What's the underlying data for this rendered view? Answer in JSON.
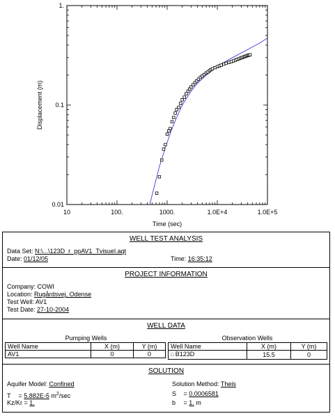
{
  "chart_data": {
    "type": "scatter",
    "x_scale": "log",
    "y_scale": "log",
    "xlim": [
      10,
      100000
    ],
    "ylim": [
      0.01,
      1
    ],
    "xlabel": "Time (sec)",
    "ylabel": "Displacement (m)",
    "x_tick_labels": [
      "10",
      "100.",
      "1000.",
      "1.0E+4",
      "1.0E+5"
    ],
    "y_tick_labels": [
      "0.01",
      "0.1",
      "1."
    ],
    "series": [
      {
        "kind": "points",
        "marker": "square",
        "color": "#000000",
        "points": [
          [
            620,
            0.013
          ],
          [
            700,
            0.019
          ],
          [
            780,
            0.028
          ],
          [
            850,
            0.036
          ],
          [
            920,
            0.04
          ],
          [
            1000,
            0.051
          ],
          [
            1080,
            0.055
          ],
          [
            1150,
            0.058
          ],
          [
            1250,
            0.068
          ],
          [
            1350,
            0.075
          ],
          [
            1450,
            0.083
          ],
          [
            1550,
            0.09
          ],
          [
            1700,
            0.095
          ],
          [
            1850,
            0.104
          ],
          [
            2000,
            0.113
          ],
          [
            2200,
            0.12
          ],
          [
            2400,
            0.13
          ],
          [
            2600,
            0.138
          ],
          [
            2800,
            0.145
          ],
          [
            3000,
            0.152
          ],
          [
            3300,
            0.16
          ],
          [
            3600,
            0.168
          ],
          [
            3900,
            0.175
          ],
          [
            4200,
            0.182
          ],
          [
            4600,
            0.19
          ],
          [
            5000,
            0.196
          ],
          [
            5500,
            0.203
          ],
          [
            6000,
            0.21
          ],
          [
            6500,
            0.215
          ],
          [
            7000,
            0.222
          ],
          [
            7500,
            0.227
          ],
          [
            8000,
            0.232
          ],
          [
            9000,
            0.238
          ],
          [
            10000,
            0.243
          ],
          [
            11000,
            0.248
          ],
          [
            12000,
            0.252
          ],
          [
            13500,
            0.258
          ],
          [
            15000,
            0.263
          ],
          [
            17000,
            0.268
          ],
          [
            19000,
            0.273
          ],
          [
            21000,
            0.278
          ],
          [
            23000,
            0.283
          ],
          [
            25000,
            0.288
          ],
          [
            27000,
            0.292
          ],
          [
            29000,
            0.296
          ],
          [
            31000,
            0.3
          ],
          [
            33000,
            0.304
          ],
          [
            35000,
            0.307
          ],
          [
            37000,
            0.31
          ],
          [
            39000,
            0.313
          ],
          [
            41000,
            0.316
          ],
          [
            43000,
            0.318
          ],
          [
            45000,
            0.32
          ]
        ]
      },
      {
        "kind": "line",
        "color": "#3a3ad8",
        "points": [
          [
            450,
            0.01
          ],
          [
            550,
            0.015
          ],
          [
            700,
            0.024
          ],
          [
            900,
            0.036
          ],
          [
            1200,
            0.055
          ],
          [
            1600,
            0.078
          ],
          [
            2000,
            0.1
          ],
          [
            3000,
            0.138
          ],
          [
            4000,
            0.165
          ],
          [
            6000,
            0.2
          ],
          [
            10000,
            0.245
          ],
          [
            20000,
            0.3
          ],
          [
            40000,
            0.36
          ],
          [
            70000,
            0.42
          ],
          [
            100000,
            0.47
          ]
        ]
      }
    ]
  },
  "report": {
    "title": "WELL TEST ANALYSIS",
    "data_set_label": "Data Set:",
    "data_set_value": "N:\\...\\123D_r_ppAV1_Tvisuel.aqt",
    "date_label": "Date:",
    "date_value": "01/12/05",
    "time_label": "Time:",
    "time_value": "16:35:12",
    "project_title": "PROJECT INFORMATION",
    "company_label": "Company:",
    "company_value": "COWI",
    "location_label": "Location:",
    "location_value": "Rugårdsvej, Odense",
    "test_well_label": "Test Well:",
    "test_well_value": "AV1",
    "test_date_label": "Test Date:",
    "test_date_value": "27-10-2004",
    "well_data_title": "WELL DATA",
    "pumping_wells_title": "Pumping Wells",
    "observation_wells_title": "Observation Wells",
    "pumping_headers": [
      "Well Name",
      "X (m)",
      "Y (m)"
    ],
    "pumping_row": [
      "AV1",
      "0",
      "0"
    ],
    "observation_headers": [
      "Well Name",
      "X (m)",
      "Y (m)"
    ],
    "observation_row": [
      "B123D",
      "15.5",
      "0"
    ],
    "observation_marker": "□",
    "solution_title": "SOLUTION",
    "aquifer_model_label": "Aquifer Model:",
    "aquifer_model_value": "Confined",
    "solution_method_label": "Solution Method:",
    "solution_method_value": "Theis",
    "T_label": "T",
    "T_value": "5.882E-5",
    "T_unit_base": "m",
    "T_unit_exp": "2",
    "T_unit_tail": "/sec",
    "S_label": "S",
    "S_value": "0.0006581",
    "KzKr_label": "Kz/Kr =",
    "KzKr_value": "1.",
    "b_label": "b",
    "b_value": "1.",
    "b_unit": "m"
  }
}
